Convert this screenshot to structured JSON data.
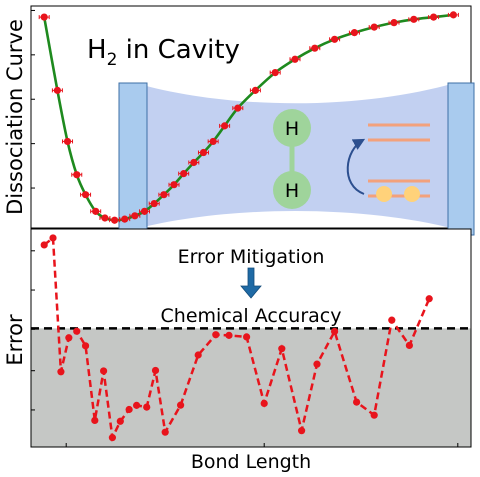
{
  "chart_data": [
    {
      "type": "line",
      "panel": "top",
      "title": "H₂ in Cavity",
      "title_parts": {
        "base": "H",
        "sub": "2",
        "rest": " in Cavity"
      },
      "ylabel": "Dissociation Curve",
      "xlabel": "",
      "xlim": [
        0,
        1
      ],
      "ylim": [
        0,
        1
      ],
      "grid": false,
      "series": [
        {
          "style": "green line with red markers and error bars",
          "color": "#1e8a1e",
          "marker_color": "#e8141c",
          "points": [
            [
              0.03,
              0.95
            ],
            [
              0.06,
              0.62
            ],
            [
              0.083,
              0.39
            ],
            [
              0.104,
              0.24
            ],
            [
              0.124,
              0.15
            ],
            [
              0.147,
              0.075
            ],
            [
              0.168,
              0.045
            ],
            [
              0.19,
              0.035
            ],
            [
              0.213,
              0.04
            ],
            [
              0.236,
              0.055
            ],
            [
              0.258,
              0.075
            ],
            [
              0.28,
              0.11
            ],
            [
              0.302,
              0.15
            ],
            [
              0.325,
              0.195
            ],
            [
              0.347,
              0.245
            ],
            [
              0.37,
              0.295
            ],
            [
              0.392,
              0.34
            ],
            [
              0.414,
              0.39
            ],
            [
              0.44,
              0.46
            ],
            [
              0.47,
              0.54
            ],
            [
              0.51,
              0.62
            ],
            [
              0.555,
              0.7
            ],
            [
              0.6,
              0.76
            ],
            [
              0.645,
              0.81
            ],
            [
              0.69,
              0.85
            ],
            [
              0.735,
              0.88
            ],
            [
              0.78,
              0.905
            ],
            [
              0.825,
              0.925
            ],
            [
              0.87,
              0.94
            ],
            [
              0.915,
              0.95
            ],
            [
              0.96,
              0.96
            ]
          ]
        }
      ]
    },
    {
      "type": "line",
      "panel": "bottom",
      "ylabel": "Error",
      "xlabel": "Bond Length",
      "xlim": [
        0,
        1
      ],
      "ylim": [
        0,
        1
      ],
      "grid": false,
      "threshold": {
        "label": "Chemical Accuracy",
        "value": 0.544,
        "fill_below": "#c5c7c5"
      },
      "annotation": {
        "label": "Error Mitigation",
        "arrow": "down",
        "arrow_color": "#1f6aa5"
      },
      "series": [
        {
          "style": "red dashed line with markers",
          "color": "#e8141c",
          "points": [
            [
              0.03,
              0.927
            ],
            [
              0.05,
              0.959
            ],
            [
              0.068,
              0.345
            ],
            [
              0.086,
              0.501
            ],
            [
              0.104,
              0.531
            ],
            [
              0.124,
              0.464
            ],
            [
              0.145,
              0.122
            ],
            [
              0.165,
              0.349
            ],
            [
              0.185,
              0.043
            ],
            [
              0.203,
              0.118
            ],
            [
              0.223,
              0.172
            ],
            [
              0.24,
              0.191
            ],
            [
              0.263,
              0.183
            ],
            [
              0.283,
              0.351
            ],
            [
              0.305,
              0.068
            ],
            [
              0.34,
              0.192
            ],
            [
              0.38,
              0.422
            ],
            [
              0.42,
              0.515
            ],
            [
              0.45,
              0.512
            ],
            [
              0.49,
              0.505
            ],
            [
              0.53,
              0.2
            ],
            [
              0.57,
              0.451
            ],
            [
              0.615,
              0.075
            ],
            [
              0.65,
              0.38
            ],
            [
              0.69,
              0.53
            ],
            [
              0.74,
              0.206
            ],
            [
              0.78,
              0.146
            ],
            [
              0.82,
              0.582
            ],
            [
              0.86,
              0.466
            ],
            [
              0.905,
              0.68
            ]
          ]
        }
      ]
    }
  ],
  "inset": {
    "atoms": [
      "H",
      "H"
    ],
    "colors": {
      "mirror_fill": "#a9cbee",
      "mirror_stroke": "#3d6fa6",
      "cavity_fill": "#b7c8ee",
      "atom_fill": "#9fd49b",
      "level_color": "#f3a17c",
      "electron_color": "#ffd27a",
      "excitation_arrow": "#2c4f8f"
    }
  }
}
